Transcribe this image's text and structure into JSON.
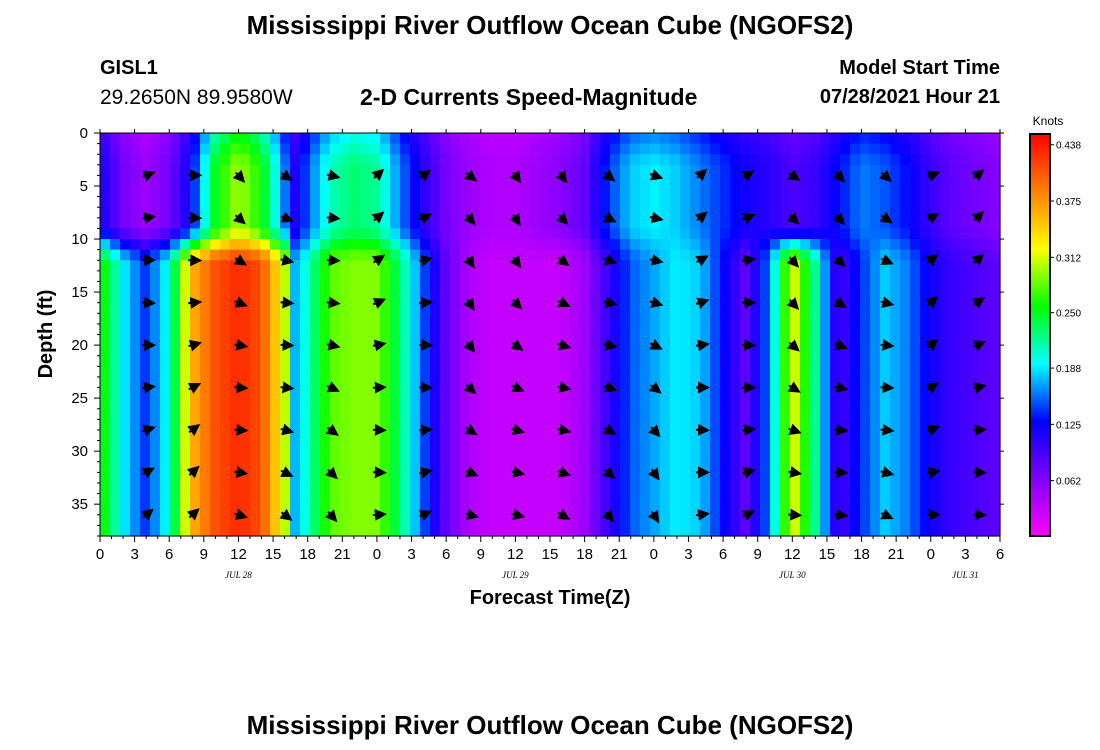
{
  "header": {
    "title": "Mississippi River Outflow Ocean Cube (NGOFS2)",
    "station": "GISL1",
    "coords": "29.2650N  89.9580W",
    "plot_title": "2-D Currents Speed-Magnitude",
    "model_label": "Model Start Time",
    "model_time": "07/28/2021 Hour 21"
  },
  "footer": {
    "title": "Mississippi River Outflow Ocean Cube (NGOFS2)"
  },
  "chart_data": {
    "type": "heatmap",
    "title": "2-D Currents Speed-Magnitude",
    "xlabel": "Forecast Time(Z)",
    "ylabel": "Depth (ft)",
    "x_tick_labels": [
      "0",
      "3",
      "6",
      "9",
      "12",
      "15",
      "18",
      "21",
      "0",
      "3",
      "6",
      "9",
      "12",
      "15",
      "18",
      "21",
      "0",
      "3",
      "6",
      "9",
      "12",
      "15",
      "18",
      "21",
      "0",
      "3",
      "6"
    ],
    "x_range_hours": [
      0,
      78
    ],
    "date_labels": [
      {
        "label": "JUL 28",
        "hour": 12
      },
      {
        "label": "JUL 29",
        "hour": 36
      },
      {
        "label": "JUL 30",
        "hour": 60
      },
      {
        "label": "JUL 31",
        "hour": 75
      }
    ],
    "y_ticks": [
      0,
      5,
      10,
      15,
      20,
      25,
      30,
      35
    ],
    "y_range_ft": [
      0,
      38
    ],
    "y_inverted": true,
    "colorbar": {
      "unit": "Knots",
      "min": 0,
      "max": 0.45,
      "ticks": [
        "0.438",
        "0.375",
        "0.312",
        "0.250",
        "0.188",
        "0.125",
        "0.062"
      ],
      "tick_values": [
        0.438,
        0.375,
        0.312,
        0.25,
        0.188,
        0.125,
        0.062
      ],
      "colors": [
        "#ff00ff",
        "#8000ff",
        "#0000ff",
        "#00ffff",
        "#00ff00",
        "#ffff00",
        "#ff8000",
        "#ff0000"
      ]
    },
    "speed_profile": {
      "hours": [
        0,
        2,
        4,
        6,
        8,
        10,
        12,
        14,
        16,
        17,
        18,
        20,
        22,
        24,
        26,
        28,
        30,
        32,
        34,
        36,
        38,
        40,
        42,
        44,
        46,
        48,
        50,
        52,
        54,
        56,
        58,
        60,
        62,
        64,
        66,
        68,
        70,
        72,
        74,
        76,
        78
      ],
      "upper_1_to_10ft": [
        0.12,
        0.07,
        0.05,
        0.07,
        0.13,
        0.25,
        0.3,
        0.26,
        0.16,
        0.11,
        0.15,
        0.21,
        0.23,
        0.22,
        0.16,
        0.11,
        0.07,
        0.05,
        0.04,
        0.04,
        0.05,
        0.06,
        0.08,
        0.14,
        0.18,
        0.19,
        0.18,
        0.16,
        0.14,
        0.12,
        0.11,
        0.09,
        0.1,
        0.13,
        0.16,
        0.15,
        0.13,
        0.1,
        0.08,
        0.07,
        0.06
      ],
      "lower_12_to_38ft": [
        0.27,
        0.19,
        0.14,
        0.2,
        0.36,
        0.41,
        0.43,
        0.41,
        0.31,
        0.16,
        0.21,
        0.28,
        0.29,
        0.29,
        0.23,
        0.15,
        0.08,
        0.04,
        0.03,
        0.03,
        0.03,
        0.03,
        0.05,
        0.1,
        0.15,
        0.17,
        0.19,
        0.18,
        0.13,
        0.08,
        0.16,
        0.32,
        0.22,
        0.09,
        0.14,
        0.18,
        0.16,
        0.12,
        0.1,
        0.09,
        0.08
      ]
    },
    "vector_samples_hours": [
      4,
      8,
      12,
      16,
      20,
      24,
      28,
      32,
      36,
      40,
      44,
      48,
      52,
      56,
      60,
      64,
      68,
      72,
      76
    ]
  }
}
